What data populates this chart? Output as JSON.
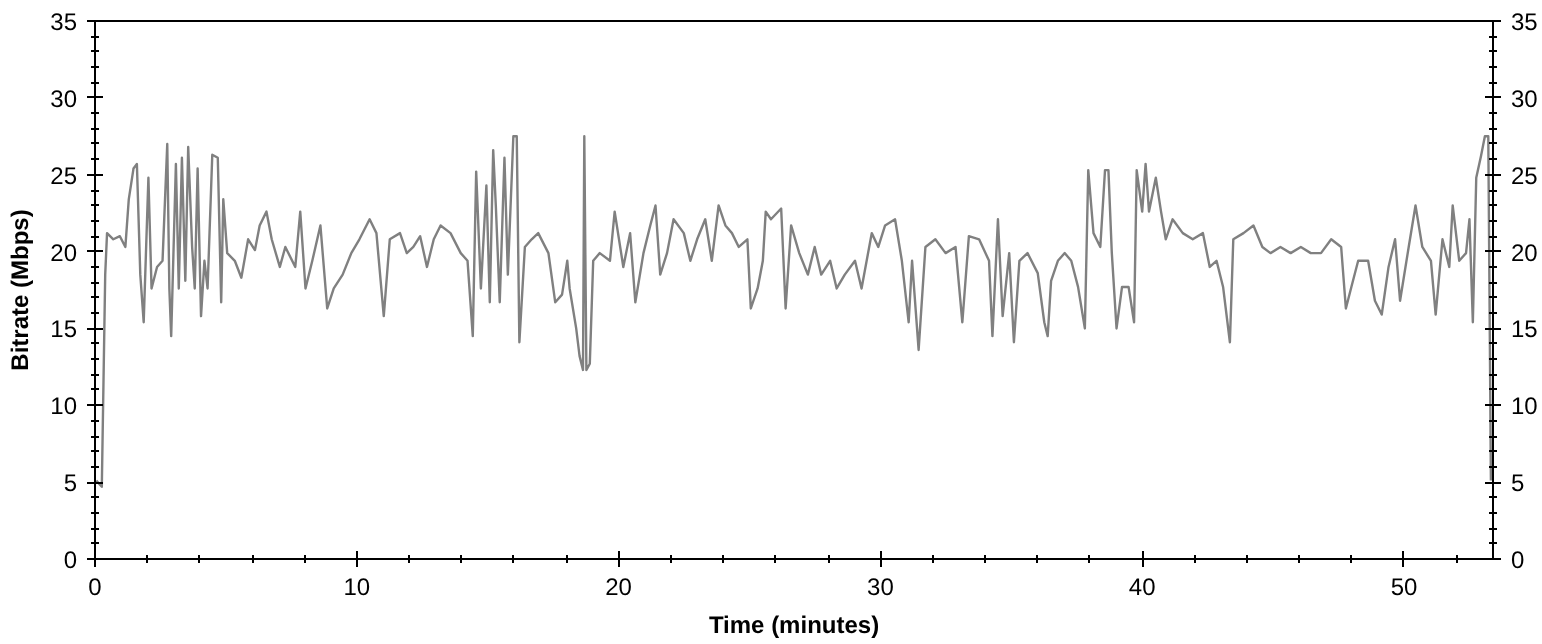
{
  "chart_data": {
    "type": "line",
    "xlabel": "Time (minutes)",
    "ylabel": "Bitrate (Mbps)",
    "xlim": [
      0,
      53.4
    ],
    "ylim": [
      0,
      35
    ],
    "y2lim": [
      0,
      35
    ],
    "xticks": [
      0,
      {
        "value": 2,
        "label": null
      },
      {
        "value": 4,
        "label": null
      },
      {
        "value": 6,
        "label": null
      },
      {
        "value": 8,
        "label": null
      },
      10,
      {
        "value": 12,
        "label": null
      },
      {
        "value": 14,
        "label": null
      },
      {
        "value": 16,
        "label": null
      },
      {
        "value": 18,
        "label": null
      },
      20,
      {
        "value": 22,
        "label": null
      },
      {
        "value": 24,
        "label": null
      },
      {
        "value": 26,
        "label": null
      },
      {
        "value": 28,
        "label": null
      },
      30,
      {
        "value": 32,
        "label": null
      },
      {
        "value": 34,
        "label": null
      },
      {
        "value": 36,
        "label": null
      },
      {
        "value": 38,
        "label": null
      },
      40,
      {
        "value": 42,
        "label": null
      },
      {
        "value": 44,
        "label": null
      },
      {
        "value": 46,
        "label": null
      },
      {
        "value": 48,
        "label": null
      },
      50,
      {
        "value": 52,
        "label": null
      }
    ],
    "yticks": [
      0,
      {
        "value": 1,
        "label": null
      },
      {
        "value": 2,
        "label": null
      },
      {
        "value": 3,
        "label": null
      },
      {
        "value": 4,
        "label": null
      },
      5,
      {
        "value": 6,
        "label": null
      },
      {
        "value": 7,
        "label": null
      },
      {
        "value": 8,
        "label": null
      },
      {
        "value": 9,
        "label": null
      },
      10,
      {
        "value": 11,
        "label": null
      },
      {
        "value": 12,
        "label": null
      },
      {
        "value": 13,
        "label": null
      },
      {
        "value": 14,
        "label": null
      },
      15,
      {
        "value": 16,
        "label": null
      },
      {
        "value": 17,
        "label": null
      },
      {
        "value": 18,
        "label": null
      },
      {
        "value": 19,
        "label": null
      },
      20,
      {
        "value": 21,
        "label": null
      },
      {
        "value": 22,
        "label": null
      },
      {
        "value": 23,
        "label": null
      },
      {
        "value": 24,
        "label": null
      },
      25,
      {
        "value": 26,
        "label": null
      },
      {
        "value": 27,
        "label": null
      },
      {
        "value": 28,
        "label": null
      },
      {
        "value": 29,
        "label": null
      },
      30,
      {
        "value": 31,
        "label": null
      },
      {
        "value": 32,
        "label": null
      },
      {
        "value": 33,
        "label": null
      },
      {
        "value": 34,
        "label": null
      },
      35
    ],
    "y2ticks": [
      0,
      {
        "value": 1,
        "label": null
      },
      {
        "value": 2,
        "label": null
      },
      {
        "value": 3,
        "label": null
      },
      {
        "value": 4,
        "label": null
      },
      5,
      {
        "value": 6,
        "label": null
      },
      {
        "value": 7,
        "label": null
      },
      {
        "value": 8,
        "label": null
      },
      {
        "value": 9,
        "label": null
      },
      10,
      {
        "value": 11,
        "label": null
      },
      {
        "value": 12,
        "label": null
      },
      {
        "value": 13,
        "label": null
      },
      {
        "value": 14,
        "label": null
      },
      15,
      {
        "value": 16,
        "label": null
      },
      {
        "value": 17,
        "label": null
      },
      {
        "value": 18,
        "label": null
      },
      {
        "value": 19,
        "label": null
      },
      20,
      {
        "value": 21,
        "label": null
      },
      {
        "value": 22,
        "label": null
      },
      {
        "value": 23,
        "label": null
      },
      {
        "value": 24,
        "label": null
      },
      25,
      {
        "value": 26,
        "label": null
      },
      {
        "value": 27,
        "label": null
      },
      {
        "value": 28,
        "label": null
      },
      {
        "value": 29,
        "label": null
      },
      30,
      {
        "value": 31,
        "label": null
      },
      {
        "value": 32,
        "label": null
      },
      {
        "value": 33,
        "label": null
      },
      {
        "value": 34,
        "label": null
      },
      35
    ],
    "grid": false,
    "line_style": "solid",
    "marker": "none",
    "x": [
      0.05,
      0.26,
      0.39,
      0.46,
      0.7,
      0.95,
      1.16,
      1.29,
      1.47,
      1.6,
      1.73,
      1.86,
      2.04,
      2.16,
      2.37,
      2.58,
      2.76,
      2.84,
      2.91,
      3.09,
      3.2,
      3.32,
      3.45,
      3.56,
      3.71,
      3.81,
      3.92,
      4.05,
      4.18,
      4.3,
      4.48,
      4.69,
      4.82,
      4.9,
      5.05,
      5.34,
      5.59,
      5.85,
      6.11,
      6.29,
      6.55,
      6.75,
      7.06,
      7.27,
      7.65,
      7.84,
      8.04,
      8.3,
      8.61,
      8.87,
      9.12,
      9.46,
      9.79,
      10.1,
      10.49,
      10.75,
      11.03,
      11.26,
      11.65,
      11.91,
      12.16,
      12.42,
      12.68,
      12.94,
      13.2,
      13.58,
      13.97,
      14.23,
      14.43,
      14.56,
      14.74,
      14.95,
      15.08,
      15.21,
      15.31,
      15.46,
      15.64,
      15.77,
      15.98,
      16.11,
      16.21,
      16.42,
      16.68,
      16.93,
      17.32,
      17.58,
      17.84,
      18.04,
      18.13,
      18.38,
      18.51,
      18.64,
      18.69,
      18.77,
      18.9,
      19.03,
      19.28,
      19.67,
      19.85,
      20.18,
      20.44,
      20.64,
      20.95,
      21.21,
      21.41,
      21.59,
      21.85,
      22.1,
      22.49,
      22.74,
      23.0,
      23.31,
      23.56,
      23.82,
      24.08,
      24.33,
      24.59,
      24.92,
      25.05,
      25.31,
      25.51,
      25.62,
      25.82,
      26.21,
      26.38,
      26.59,
      26.9,
      27.23,
      27.49,
      27.74,
      28.08,
      28.33,
      28.64,
      29.03,
      29.28,
      29.67,
      29.92,
      30.18,
      30.56,
      30.82,
      31.08,
      31.21,
      31.46,
      31.72,
      32.1,
      32.49,
      32.87,
      33.13,
      33.38,
      33.77,
      34.15,
      34.28,
      34.49,
      34.67,
      34.92,
      35.1,
      35.31,
      35.62,
      36.01,
      36.26,
      36.39,
      36.52,
      36.78,
      37.04,
      37.29,
      37.55,
      37.81,
      37.94,
      38.14,
      38.4,
      38.58,
      38.71,
      38.84,
      39.02,
      39.23,
      39.48,
      39.69,
      39.79,
      40.0,
      40.13,
      40.26,
      40.52,
      40.72,
      40.9,
      41.16,
      41.55,
      41.93,
      42.32,
      42.58,
      42.84,
      43.09,
      43.35,
      43.48,
      43.87,
      44.25,
      44.59,
      44.9,
      45.28,
      45.67,
      46.06,
      46.44,
      46.83,
      47.22,
      47.6,
      47.78,
      47.99,
      48.25,
      48.63,
      48.89,
      49.15,
      49.41,
      49.66,
      49.85,
      50.18,
      50.44,
      50.7,
      51.03,
      51.21,
      51.47,
      51.73,
      51.86,
      52.11,
      52.37,
      52.5,
      52.63,
      52.76,
      52.94,
      53.09,
      53.22,
      53.32
    ],
    "series": [
      {
        "color": "#808080",
        "values": [
          5.1,
          4.7,
          18.5,
          21.2,
          20.8,
          21,
          20.3,
          23.4,
          25.4,
          25.7,
          18.5,
          15.4,
          24.8,
          17.6,
          19,
          19.4,
          27,
          17.6,
          14.5,
          25.7,
          17.6,
          26.1,
          18.1,
          26.8,
          20.3,
          17.6,
          25.4,
          15.8,
          19.4,
          17.6,
          26.3,
          26.1,
          16.7,
          23.4,
          19.9,
          19.4,
          18.3,
          20.8,
          20.1,
          21.7,
          22.6,
          20.8,
          19,
          20.3,
          19,
          22.6,
          17.6,
          19.4,
          21.7,
          16.3,
          17.6,
          18.5,
          19.9,
          20.8,
          22.1,
          21.2,
          15.8,
          20.8,
          21.2,
          19.9,
          20.3,
          21,
          19,
          20.8,
          21.7,
          21.2,
          19.9,
          19.4,
          14.5,
          25.2,
          17.6,
          24.3,
          16.7,
          26.6,
          23,
          16.7,
          26.1,
          18.5,
          27.5,
          27.5,
          14.1,
          20.3,
          20.8,
          21.2,
          19.9,
          16.7,
          17.2,
          19.4,
          17.6,
          15,
          13.2,
          12.3,
          27.5,
          12.3,
          12.7,
          19.4,
          19.9,
          19.4,
          22.6,
          19,
          21.2,
          16.7,
          19.9,
          21.7,
          23,
          18.5,
          19.9,
          22.1,
          21.2,
          19.4,
          20.8,
          22.1,
          19.4,
          23,
          21.7,
          21.2,
          20.3,
          20.8,
          16.3,
          17.6,
          19.4,
          22.6,
          22.1,
          22.8,
          16.3,
          21.7,
          19.9,
          18.5,
          20.3,
          18.5,
          19.4,
          17.6,
          18.5,
          19.4,
          17.6,
          21.2,
          20.3,
          21.7,
          22.1,
          19.4,
          15.4,
          19.4,
          13.6,
          20.3,
          20.8,
          19.9,
          20.3,
          15.4,
          21,
          20.8,
          19.4,
          14.5,
          22.1,
          15.8,
          19.9,
          14.1,
          19.4,
          19.9,
          18.6,
          15.4,
          14.5,
          18.1,
          19.4,
          19.9,
          19.4,
          17.7,
          15,
          25.3,
          21.2,
          20.3,
          25.3,
          25.3,
          19.9,
          15,
          17.7,
          17.7,
          15.4,
          25.3,
          22.6,
          25.7,
          22.6,
          24.8,
          22.6,
          20.8,
          22.1,
          21.2,
          20.8,
          21.2,
          19,
          19.4,
          17.7,
          14.1,
          20.8,
          21.2,
          21.7,
          20.3,
          19.9,
          20.3,
          19.9,
          20.3,
          19.9,
          19.9,
          20.8,
          20.3,
          16.3,
          17.7,
          19.4,
          19.4,
          16.8,
          15.9,
          19,
          20.8,
          16.8,
          20.3,
          23,
          20.3,
          19.4,
          15.9,
          20.8,
          19,
          23,
          19.4,
          19.9,
          22.1,
          15.4,
          24.8,
          26.2,
          27.5,
          27.5,
          5.1
        ]
      }
    ]
  }
}
